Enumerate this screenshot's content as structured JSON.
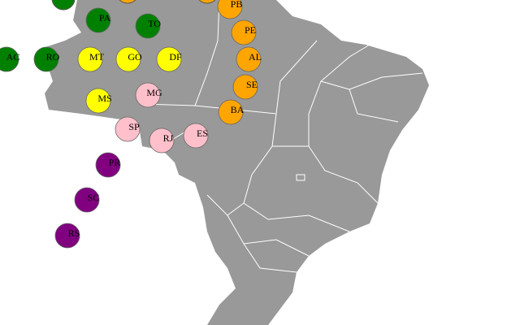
{
  "states": [
    {
      "label": "PB",
      "color": "#ffa500"
    },
    {
      "label": "PA",
      "color": "#008000"
    },
    {
      "label": "TO",
      "color": "#008000"
    },
    {
      "label": "PE",
      "color": "#ffa500"
    },
    {
      "label": "AC",
      "color": "#008000"
    },
    {
      "label": "RO",
      "color": "#008000"
    },
    {
      "label": "MT",
      "color": "#ffff00"
    },
    {
      "label": "GO",
      "color": "#ffff00"
    },
    {
      "label": "DF",
      "color": "#ffff00"
    },
    {
      "label": "AL",
      "color": "#ffa500"
    },
    {
      "label": "SE",
      "color": "#ffa500"
    },
    {
      "label": "MG",
      "color": "#ffc0cb"
    },
    {
      "label": "MS",
      "color": "#ffff00"
    },
    {
      "label": "BA",
      "color": "#ffa500"
    },
    {
      "label": "SP",
      "color": "#ffc0cb"
    },
    {
      "label": "RJ",
      "color": "#ffc0cb"
    },
    {
      "label": "ES",
      "color": "#ffc0cb"
    },
    {
      "label": "PR",
      "color": "#800080"
    },
    {
      "label": "SC",
      "color": "#800080"
    },
    {
      "label": "RS",
      "color": "#800080"
    }
  ]
}
